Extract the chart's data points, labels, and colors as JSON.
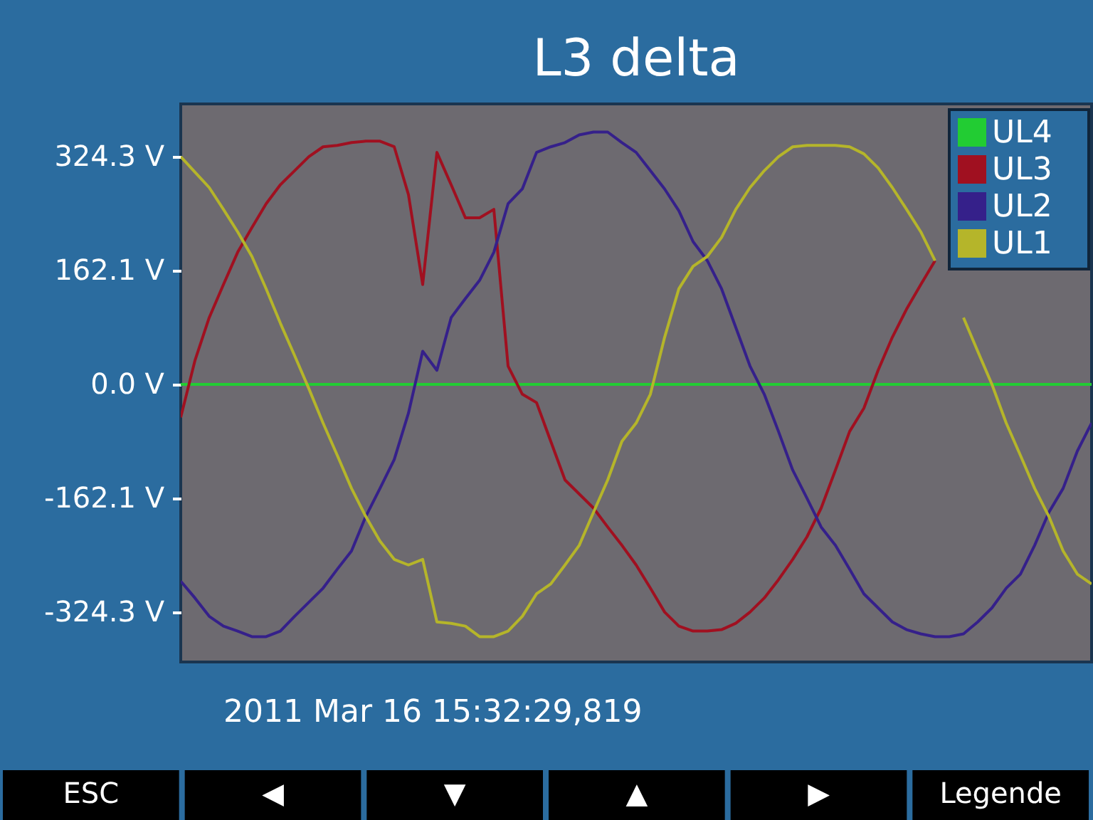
{
  "chart_data": {
    "type": "line",
    "title": "L3 delta",
    "categories": [
      null,
      null,
      null,
      null,
      null,
      null,
      null,
      null,
      null,
      null,
      null,
      null,
      null,
      null,
      null,
      null,
      null,
      null,
      null,
      null,
      null,
      null,
      null,
      null,
      null,
      null,
      null,
      null,
      null,
      null,
      null,
      null,
      null,
      null,
      null,
      null,
      null,
      null,
      null,
      null,
      null,
      null,
      null,
      null,
      null,
      null,
      null,
      null,
      null,
      null,
      null,
      null,
      null,
      null,
      null,
      null,
      null,
      null,
      null,
      null,
      null,
      null,
      null,
      null,
      null
    ],
    "series": [
      {
        "name": "UL4",
        "color": "#22cc33",
        "values": [
          0,
          0,
          0,
          0,
          0,
          0,
          0,
          0,
          0,
          0,
          0,
          0,
          0,
          0,
          0,
          0,
          0,
          0,
          0,
          0,
          0,
          0,
          0,
          0,
          0,
          0,
          0,
          0,
          0,
          0,
          0,
          0,
          0,
          0,
          0,
          0,
          0,
          0,
          0,
          0,
          0,
          0,
          0,
          0,
          0,
          0,
          0,
          0,
          0,
          0,
          0,
          0,
          0,
          0,
          0,
          0,
          0,
          0,
          0,
          0,
          0,
          0,
          0,
          0,
          0
        ]
      },
      {
        "name": "UL3",
        "color": "#a01020",
        "values": [
          -47,
          34,
          95,
          142,
          188,
          223,
          257,
          284,
          304,
          324,
          338,
          340,
          344,
          346,
          346,
          338,
          270,
          142,
          330,
          284,
          237,
          237,
          249,
          26,
          -14,
          -26,
          -81,
          -136,
          -156,
          -176,
          -203,
          -229,
          -257,
          -290,
          -324,
          -344,
          -351,
          -351,
          -349,
          -340,
          -324,
          -304,
          -278,
          -249,
          -217,
          -176,
          -122,
          -67,
          -34,
          20,
          67,
          107,
          142,
          176,
          null,
          null,
          null,
          null,
          null,
          null,
          null,
          null,
          null,
          null,
          null
        ]
      },
      {
        "name": "UL2",
        "color": "#35208a",
        "values": [
          -280,
          -304,
          -330,
          -344,
          -351,
          -359,
          -359,
          -351,
          -330,
          -310,
          -290,
          -263,
          -237,
          -188,
          -148,
          -107,
          -41,
          47,
          20,
          95,
          122,
          148,
          188,
          257,
          278,
          330,
          338,
          344,
          355,
          359,
          359,
          344,
          330,
          304,
          278,
          247,
          203,
          176,
          136,
          81,
          26,
          -14,
          -67,
          -122,
          -162,
          -203,
          -229,
          -263,
          -298,
          -318,
          -338,
          -349,
          -355,
          -359,
          -359,
          -355,
          -338,
          -318,
          -290,
          -270,
          -229,
          -182,
          -148,
          -95,
          -55
        ]
      },
      {
        "name": "UL1",
        "color": "#b5b52a",
        "values": [
          324,
          302,
          280,
          249,
          217,
          182,
          136,
          87,
          41,
          -6,
          -55,
          -101,
          -148,
          -188,
          -223,
          -249,
          -257,
          -249,
          -338,
          -340,
          -344,
          -359,
          -359,
          -351,
          -330,
          -298,
          -284,
          -257,
          -229,
          -182,
          -136,
          -81,
          -55,
          -14,
          67,
          136,
          168,
          182,
          209,
          249,
          280,
          304,
          324,
          338,
          340,
          340,
          340,
          338,
          328,
          308,
          280,
          249,
          217,
          176,
          null,
          95,
          47,
          0,
          -55,
          -101,
          -148,
          -188,
          -237,
          -270,
          -284
        ]
      }
    ],
    "ylim": [
      -395,
      399
    ],
    "yticks": [
      {
        "value": 324.3,
        "label": "324.3 V"
      },
      {
        "value": 162.1,
        "label": "162.1 V"
      },
      {
        "value": 0,
        "label": "0.0 V"
      },
      {
        "value": -162.1,
        "label": "-162.1 V"
      },
      {
        "value": -324.3,
        "label": "-324.3 V"
      }
    ],
    "tick_labels": "y",
    "grid": false,
    "legend": "top right",
    "annotations": [
      "2011 Mar 16 15:32:29,819",
      "ESC",
      "◀",
      "▼",
      "▲",
      "▶",
      "Legende"
    ]
  }
}
